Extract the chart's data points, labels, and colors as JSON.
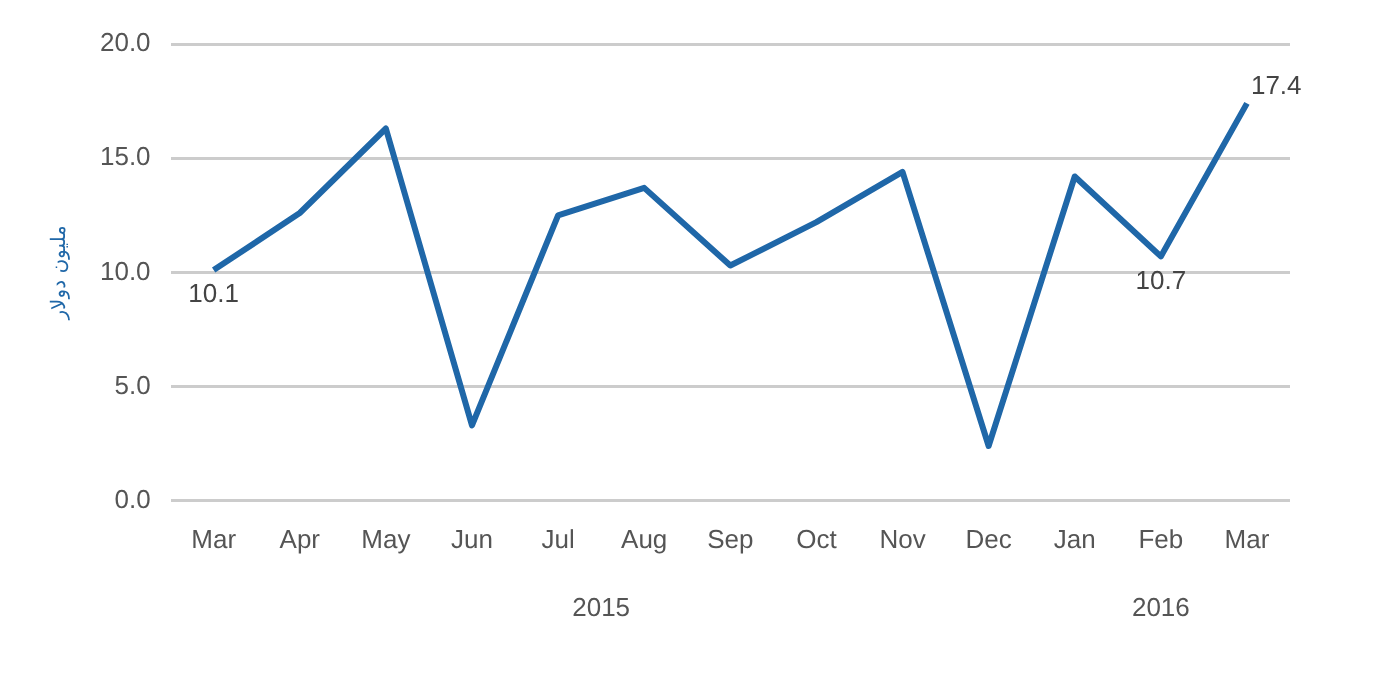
{
  "chart_data": {
    "type": "line",
    "ylabel": "مليون دولار",
    "categories": [
      "Mar",
      "Apr",
      "May",
      "Jun",
      "Jul",
      "Aug",
      "Sep",
      "Oct",
      "Nov",
      "Dec",
      "Jan",
      "Feb",
      "Mar"
    ],
    "series": [
      {
        "color": "#1f67a8",
        "values": [
          10.1,
          12.6,
          16.3,
          3.3,
          12.5,
          13.7,
          10.3,
          12.2,
          14.4,
          2.4,
          14.2,
          10.7,
          17.4
        ],
        "value_labels": [
          "10.1",
          null,
          null,
          null,
          null,
          null,
          null,
          null,
          null,
          null,
          null,
          "10.7",
          "17.4"
        ]
      }
    ],
    "ylim": [
      0,
      20
    ],
    "yticks": [
      {
        "value": 0,
        "label": "0.0"
      },
      {
        "value": 5,
        "label": "5.0"
      },
      {
        "value": 10,
        "label": "10.0"
      },
      {
        "value": 15,
        "label": "15.0"
      },
      {
        "value": 20,
        "label": "20.0"
      }
    ],
    "grid": "y",
    "legend": false,
    "marker": "none",
    "line_style": "solid",
    "annotations": [
      "2015",
      "2016"
    ]
  }
}
